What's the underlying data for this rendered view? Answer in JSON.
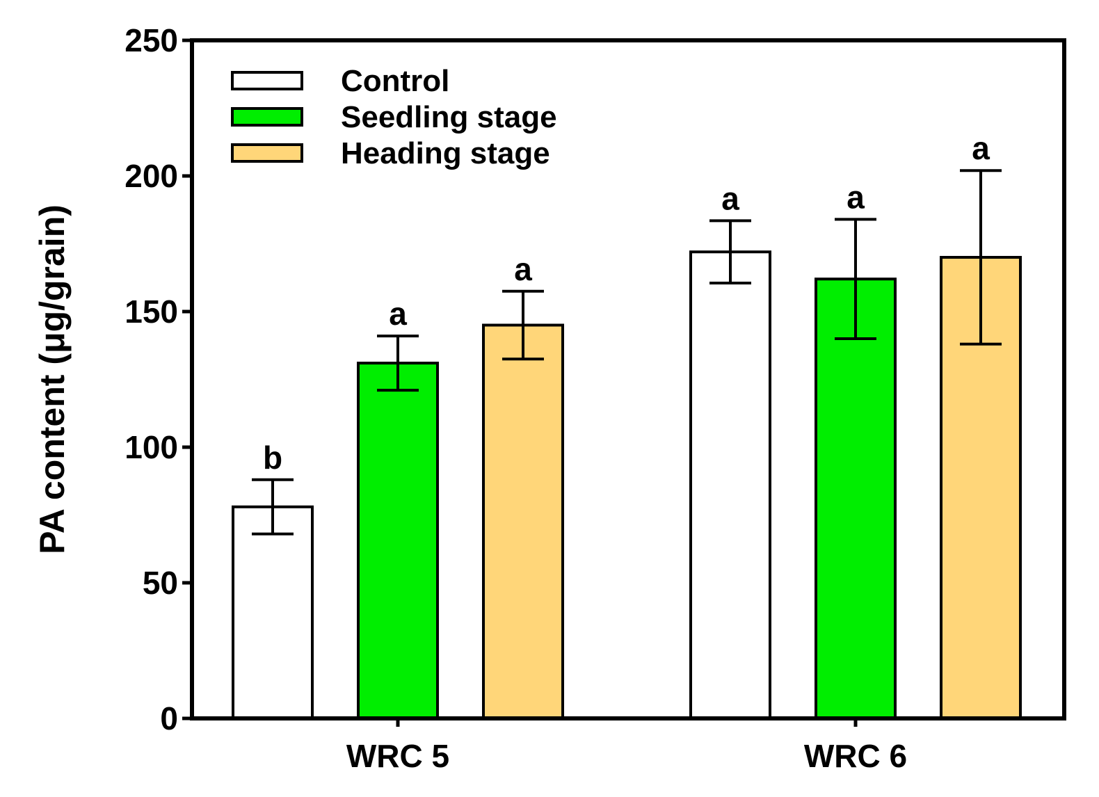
{
  "chart_data": {
    "type": "bar",
    "title": "",
    "xlabel": "",
    "ylabel": "PA content (μg/grain)",
    "categories": [
      "WRC 5",
      "WRC 6"
    ],
    "ylim": [
      0,
      250
    ],
    "yticks": [
      "0",
      "50",
      "100",
      "150",
      "200",
      "250"
    ],
    "grid": false,
    "legend_position": "top-left",
    "series": [
      {
        "name": "Control",
        "color": "#ffffff",
        "values": [
          78,
          172
        ],
        "errors": [
          10,
          11.5
        ],
        "letters": [
          "b",
          "a"
        ]
      },
      {
        "name": "Seedling stage",
        "color": "#00ee00",
        "values": [
          131,
          162
        ],
        "errors": [
          10,
          22
        ],
        "letters": [
          "a",
          "a"
        ]
      },
      {
        "name": "Heading stage",
        "color": "#ffd679",
        "values": [
          145,
          170
        ],
        "errors": [
          12.5,
          32
        ],
        "letters": [
          "a",
          "a"
        ]
      }
    ]
  }
}
